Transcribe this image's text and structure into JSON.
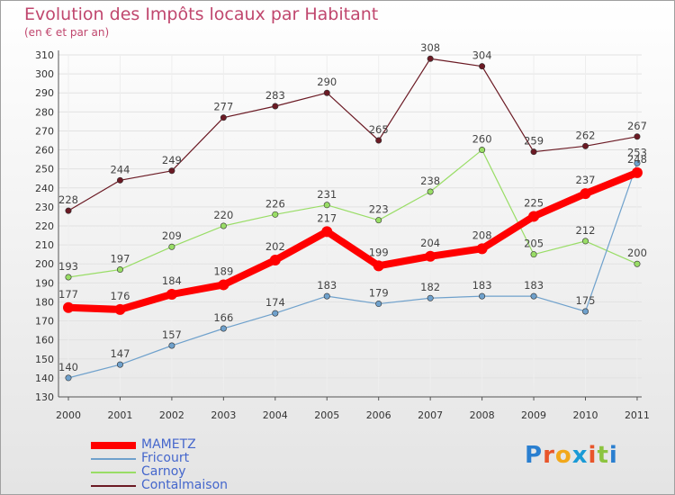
{
  "title": "Evolution des Impôts locaux par Habitant",
  "subtitle": "(en € et par an)",
  "logo": {
    "text": "Proxiti",
    "letters": [
      "P",
      "r",
      "o",
      "x",
      "i",
      "t",
      "i"
    ],
    "letter_colors": [
      "#2a7fd0",
      "#e8552b",
      "#f2a81b",
      "#1a9ad6",
      "#e8552b",
      "#8cc43f",
      "#2a7fd0"
    ]
  },
  "chart_data": {
    "type": "line",
    "title": "Evolution des Impôts locaux par Habitant",
    "subtitle": "(en € et par an)",
    "xlabel": "",
    "ylabel": "",
    "x": [
      "2000",
      "2001",
      "2002",
      "2003",
      "2004",
      "2005",
      "2006",
      "2007",
      "2008",
      "2009",
      "2010",
      "2011"
    ],
    "ylim": [
      130,
      310
    ],
    "yticks": [
      130,
      140,
      150,
      160,
      170,
      180,
      190,
      200,
      210,
      220,
      230,
      240,
      250,
      260,
      270,
      280,
      290,
      300,
      310
    ],
    "grid": "horizontal",
    "legend_position": "bottom-left",
    "series": [
      {
        "name": "Contalmaison",
        "color": "#6b1a24",
        "values": [
          228,
          244,
          249,
          277,
          283,
          290,
          265,
          308,
          304,
          259,
          262,
          267
        ],
        "labels": [
          "228",
          "244",
          "249",
          "277",
          "283",
          "290",
          "265",
          "308",
          "304",
          "259",
          "262",
          "267"
        ]
      },
      {
        "name": "Carnoy",
        "color": "#99dd66",
        "values": [
          193,
          197,
          209,
          220,
          226,
          231,
          223,
          238,
          260,
          205,
          212,
          200
        ],
        "labels": [
          "193",
          "197",
          "209",
          "220",
          "226",
          "231",
          "223",
          "238",
          "260",
          "205",
          "212",
          "200"
        ]
      },
      {
        "name": "Fricourt",
        "color": "#6fa1cc",
        "values": [
          140,
          147,
          157,
          166,
          174,
          183,
          179,
          182,
          183,
          183,
          175,
          253
        ],
        "labels": [
          "140",
          "147",
          "157",
          "166",
          "174",
          "183",
          "179",
          "182",
          "183",
          "183",
          "175",
          "253"
        ]
      },
      {
        "name": "MAMETZ",
        "color": "#ff0000",
        "values": [
          177,
          176,
          184,
          189,
          202,
          217,
          199,
          204,
          208,
          225,
          237,
          248
        ],
        "labels": [
          "177",
          "176",
          "184",
          "189",
          "202",
          "217",
          "199",
          "204",
          "208",
          "225",
          "237",
          "248"
        ]
      }
    ],
    "legend": [
      {
        "name": "MAMETZ",
        "color": "#ff0000"
      },
      {
        "name": "Fricourt",
        "color": "#6fa1cc"
      },
      {
        "name": "Carnoy",
        "color": "#99dd66"
      },
      {
        "name": "Contalmaison",
        "color": "#6b1a24"
      }
    ]
  }
}
